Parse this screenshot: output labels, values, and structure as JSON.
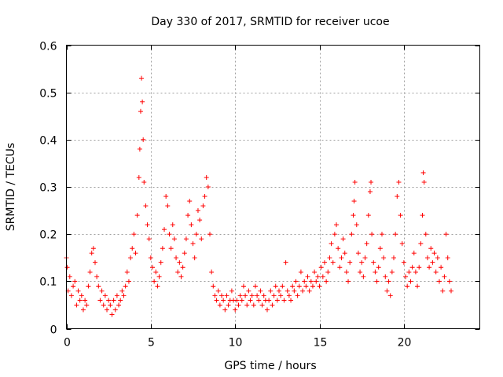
{
  "chart_data": {
    "type": "scatter",
    "title": "Day 330 of 2017, SRMTID for receiver ucoe",
    "xlabel": "GPS time / hours",
    "ylabel": "SRMTID / TECUs",
    "xlim": [
      0,
      24.5
    ],
    "ylim": [
      0,
      0.6
    ],
    "xticks": [
      0,
      5,
      10,
      15,
      20
    ],
    "yticks": [
      0,
      0.1,
      0.2,
      0.3,
      0.4,
      0.5,
      0.6
    ],
    "grid": true,
    "marker": "+",
    "color": "#ff0000",
    "x_range_of_data": [
      0,
      22.8
    ],
    "series": [
      {
        "name": "SRMTID",
        "points": [
          [
            0.0,
            0.15
          ],
          [
            0.05,
            0.13
          ],
          [
            0.1,
            0.08
          ],
          [
            0.2,
            0.11
          ],
          [
            0.3,
            0.07
          ],
          [
            0.4,
            0.09
          ],
          [
            0.5,
            0.1
          ],
          [
            0.6,
            0.05
          ],
          [
            0.7,
            0.08
          ],
          [
            0.8,
            0.06
          ],
          [
            0.9,
            0.07
          ],
          [
            1.0,
            0.04
          ],
          [
            1.1,
            0.06
          ],
          [
            1.2,
            0.05
          ],
          [
            1.3,
            0.09
          ],
          [
            1.4,
            0.12
          ],
          [
            1.5,
            0.16
          ],
          [
            1.6,
            0.17
          ],
          [
            1.7,
            0.14
          ],
          [
            1.8,
            0.11
          ],
          [
            1.9,
            0.09
          ],
          [
            2.0,
            0.06
          ],
          [
            2.1,
            0.08
          ],
          [
            2.2,
            0.05
          ],
          [
            2.3,
            0.07
          ],
          [
            2.4,
            0.04
          ],
          [
            2.5,
            0.06
          ],
          [
            2.6,
            0.05
          ],
          [
            2.7,
            0.03
          ],
          [
            2.8,
            0.06
          ],
          [
            2.9,
            0.04
          ],
          [
            3.0,
            0.07
          ],
          [
            3.1,
            0.05
          ],
          [
            3.2,
            0.06
          ],
          [
            3.3,
            0.08
          ],
          [
            3.4,
            0.07
          ],
          [
            3.5,
            0.09
          ],
          [
            3.6,
            0.12
          ],
          [
            3.7,
            0.1
          ],
          [
            3.8,
            0.15
          ],
          [
            3.9,
            0.17
          ],
          [
            4.0,
            0.2
          ],
          [
            4.1,
            0.16
          ],
          [
            4.2,
            0.24
          ],
          [
            4.3,
            0.32
          ],
          [
            4.35,
            0.38
          ],
          [
            4.4,
            0.46
          ],
          [
            4.45,
            0.53
          ],
          [
            4.5,
            0.48
          ],
          [
            4.55,
            0.4
          ],
          [
            4.6,
            0.31
          ],
          [
            4.7,
            0.26
          ],
          [
            4.8,
            0.22
          ],
          [
            4.9,
            0.19
          ],
          [
            5.0,
            0.15
          ],
          [
            5.1,
            0.13
          ],
          [
            5.2,
            0.1
          ],
          [
            5.3,
            0.12
          ],
          [
            5.4,
            0.09
          ],
          [
            5.5,
            0.11
          ],
          [
            5.6,
            0.14
          ],
          [
            5.7,
            0.17
          ],
          [
            5.8,
            0.21
          ],
          [
            5.9,
            0.28
          ],
          [
            6.0,
            0.26
          ],
          [
            6.1,
            0.2
          ],
          [
            6.2,
            0.17
          ],
          [
            6.3,
            0.22
          ],
          [
            6.4,
            0.19
          ],
          [
            6.5,
            0.15
          ],
          [
            6.6,
            0.12
          ],
          [
            6.7,
            0.14
          ],
          [
            6.8,
            0.11
          ],
          [
            6.9,
            0.13
          ],
          [
            7.0,
            0.16
          ],
          [
            7.1,
            0.19
          ],
          [
            7.2,
            0.24
          ],
          [
            7.3,
            0.27
          ],
          [
            7.4,
            0.22
          ],
          [
            7.5,
            0.18
          ],
          [
            7.6,
            0.15
          ],
          [
            7.7,
            0.2
          ],
          [
            7.8,
            0.25
          ],
          [
            7.9,
            0.23
          ],
          [
            8.0,
            0.19
          ],
          [
            8.1,
            0.26
          ],
          [
            8.2,
            0.28
          ],
          [
            8.3,
            0.32
          ],
          [
            8.4,
            0.3
          ],
          [
            8.5,
            0.2
          ],
          [
            8.6,
            0.12
          ],
          [
            8.7,
            0.09
          ],
          [
            8.8,
            0.07
          ],
          [
            8.9,
            0.06
          ],
          [
            9.0,
            0.08
          ],
          [
            9.1,
            0.05
          ],
          [
            9.2,
            0.07
          ],
          [
            9.3,
            0.06
          ],
          [
            9.4,
            0.04
          ],
          [
            9.5,
            0.07
          ],
          [
            9.6,
            0.05
          ],
          [
            9.7,
            0.06
          ],
          [
            9.8,
            0.08
          ],
          [
            9.9,
            0.06
          ],
          [
            10.0,
            0.04
          ],
          [
            10.1,
            0.06
          ],
          [
            10.2,
            0.05
          ],
          [
            10.3,
            0.07
          ],
          [
            10.4,
            0.06
          ],
          [
            10.5,
            0.09
          ],
          [
            10.6,
            0.07
          ],
          [
            10.7,
            0.05
          ],
          [
            10.8,
            0.08
          ],
          [
            10.9,
            0.06
          ],
          [
            11.0,
            0.07
          ],
          [
            11.1,
            0.05
          ],
          [
            11.2,
            0.09
          ],
          [
            11.3,
            0.07
          ],
          [
            11.4,
            0.06
          ],
          [
            11.5,
            0.08
          ],
          [
            11.6,
            0.05
          ],
          [
            11.7,
            0.07
          ],
          [
            11.8,
            0.06
          ],
          [
            11.9,
            0.04
          ],
          [
            12.0,
            0.06
          ],
          [
            12.1,
            0.08
          ],
          [
            12.2,
            0.05
          ],
          [
            12.3,
            0.07
          ],
          [
            12.4,
            0.09
          ],
          [
            12.5,
            0.06
          ],
          [
            12.6,
            0.08
          ],
          [
            12.7,
            0.07
          ],
          [
            12.8,
            0.09
          ],
          [
            12.9,
            0.06
          ],
          [
            13.0,
            0.14
          ],
          [
            13.1,
            0.08
          ],
          [
            13.2,
            0.07
          ],
          [
            13.3,
            0.06
          ],
          [
            13.4,
            0.09
          ],
          [
            13.5,
            0.08
          ],
          [
            13.6,
            0.1
          ],
          [
            13.7,
            0.07
          ],
          [
            13.8,
            0.09
          ],
          [
            13.9,
            0.12
          ],
          [
            14.0,
            0.08
          ],
          [
            14.1,
            0.1
          ],
          [
            14.2,
            0.09
          ],
          [
            14.3,
            0.11
          ],
          [
            14.4,
            0.08
          ],
          [
            14.5,
            0.1
          ],
          [
            14.6,
            0.09
          ],
          [
            14.7,
            0.12
          ],
          [
            14.8,
            0.1
          ],
          [
            14.9,
            0.11
          ],
          [
            15.0,
            0.09
          ],
          [
            15.1,
            0.13
          ],
          [
            15.2,
            0.11
          ],
          [
            15.3,
            0.14
          ],
          [
            15.4,
            0.1
          ],
          [
            15.5,
            0.12
          ],
          [
            15.6,
            0.15
          ],
          [
            15.7,
            0.18
          ],
          [
            15.8,
            0.14
          ],
          [
            15.9,
            0.2
          ],
          [
            16.0,
            0.22
          ],
          [
            16.1,
            0.17
          ],
          [
            16.2,
            0.13
          ],
          [
            16.3,
            0.15
          ],
          [
            16.4,
            0.19
          ],
          [
            16.5,
            0.16
          ],
          [
            16.6,
            0.12
          ],
          [
            16.7,
            0.1
          ],
          [
            16.8,
            0.14
          ],
          [
            16.9,
            0.2
          ],
          [
            17.0,
            0.24
          ],
          [
            17.05,
            0.27
          ],
          [
            17.1,
            0.31
          ],
          [
            17.2,
            0.22
          ],
          [
            17.3,
            0.16
          ],
          [
            17.4,
            0.12
          ],
          [
            17.5,
            0.14
          ],
          [
            17.6,
            0.11
          ],
          [
            17.7,
            0.15
          ],
          [
            17.8,
            0.18
          ],
          [
            17.9,
            0.24
          ],
          [
            18.0,
            0.29
          ],
          [
            18.05,
            0.31
          ],
          [
            18.1,
            0.2
          ],
          [
            18.2,
            0.14
          ],
          [
            18.3,
            0.12
          ],
          [
            18.4,
            0.1
          ],
          [
            18.5,
            0.13
          ],
          [
            18.6,
            0.17
          ],
          [
            18.7,
            0.2
          ],
          [
            18.8,
            0.15
          ],
          [
            18.9,
            0.11
          ],
          [
            19.0,
            0.08
          ],
          [
            19.1,
            0.1
          ],
          [
            19.2,
            0.07
          ],
          [
            19.3,
            0.12
          ],
          [
            19.4,
            0.15
          ],
          [
            19.5,
            0.2
          ],
          [
            19.6,
            0.28
          ],
          [
            19.7,
            0.31
          ],
          [
            19.8,
            0.24
          ],
          [
            19.9,
            0.18
          ],
          [
            20.0,
            0.14
          ],
          [
            20.1,
            0.11
          ],
          [
            20.2,
            0.09
          ],
          [
            20.3,
            0.12
          ],
          [
            20.4,
            0.1
          ],
          [
            20.5,
            0.13
          ],
          [
            20.6,
            0.16
          ],
          [
            20.7,
            0.12
          ],
          [
            20.8,
            0.09
          ],
          [
            20.9,
            0.13
          ],
          [
            21.0,
            0.18
          ],
          [
            21.1,
            0.24
          ],
          [
            21.15,
            0.33
          ],
          [
            21.2,
            0.31
          ],
          [
            21.3,
            0.2
          ],
          [
            21.4,
            0.15
          ],
          [
            21.5,
            0.13
          ],
          [
            21.6,
            0.17
          ],
          [
            21.7,
            0.14
          ],
          [
            21.8,
            0.16
          ],
          [
            21.9,
            0.12
          ],
          [
            22.0,
            0.15
          ],
          [
            22.1,
            0.1
          ],
          [
            22.2,
            0.13
          ],
          [
            22.3,
            0.08
          ],
          [
            22.4,
            0.11
          ],
          [
            22.5,
            0.2
          ],
          [
            22.6,
            0.15
          ],
          [
            22.7,
            0.1
          ],
          [
            22.8,
            0.08
          ]
        ]
      }
    ]
  }
}
